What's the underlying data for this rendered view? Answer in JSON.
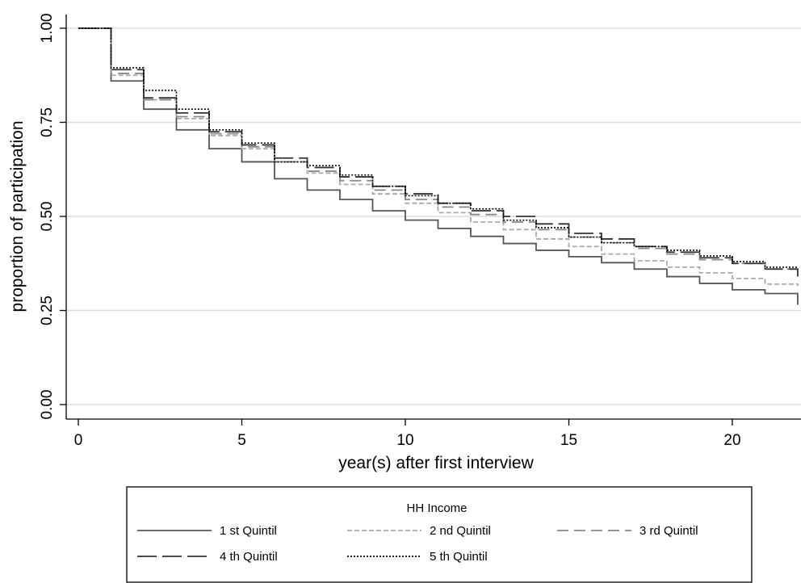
{
  "chart_data": {
    "type": "line",
    "step": true,
    "xlabel": "year(s) after first interview",
    "ylabel": "proportion of participation",
    "xlim": [
      0,
      22
    ],
    "ylim": [
      0,
      1
    ],
    "xticks": [
      "0",
      "5",
      "10",
      "15",
      "20"
    ],
    "yticks": [
      "0.00",
      "0.25",
      "0.50",
      "0.75",
      "1.00"
    ],
    "grid": "horizontal",
    "legend_title": "HH Income",
    "legend_position": "bottom",
    "x": [
      0,
      1,
      2,
      3,
      4,
      5,
      6,
      7,
      8,
      9,
      10,
      11,
      12,
      13,
      14,
      15,
      16,
      17,
      18,
      19,
      20,
      21,
      22
    ],
    "series": [
      {
        "name": "1 st Quintil",
        "color": "#555555",
        "dash": "solid",
        "values": [
          1.0,
          0.86,
          0.785,
          0.73,
          0.68,
          0.645,
          0.6,
          0.57,
          0.545,
          0.515,
          0.49,
          0.468,
          0.447,
          0.428,
          0.41,
          0.393,
          0.377,
          0.36,
          0.34,
          0.322,
          0.305,
          0.295,
          0.265
        ]
      },
      {
        "name": "2 nd Quintil",
        "color": "#aaaaaa",
        "dash": "short",
        "values": [
          1.0,
          0.875,
          0.81,
          0.76,
          0.715,
          0.68,
          0.645,
          0.615,
          0.585,
          0.56,
          0.535,
          0.51,
          0.485,
          0.465,
          0.44,
          0.42,
          0.4,
          0.382,
          0.365,
          0.35,
          0.335,
          0.32,
          0.315
        ]
      },
      {
        "name": "3 rd Quintil",
        "color": "#888888",
        "dash": "long",
        "values": [
          1.0,
          0.88,
          0.81,
          0.765,
          0.72,
          0.685,
          0.645,
          0.62,
          0.595,
          0.57,
          0.545,
          0.525,
          0.505,
          0.485,
          0.465,
          0.445,
          0.43,
          0.415,
          0.4,
          0.385,
          0.375,
          0.36,
          0.355
        ]
      },
      {
        "name": "4 th Quintil",
        "color": "#333333",
        "dash": "longlong",
        "values": [
          1.0,
          0.89,
          0.815,
          0.775,
          0.725,
          0.69,
          0.655,
          0.63,
          0.605,
          0.58,
          0.56,
          0.535,
          0.515,
          0.5,
          0.48,
          0.455,
          0.44,
          0.42,
          0.405,
          0.39,
          0.375,
          0.36,
          0.34
        ]
      },
      {
        "name": "5 th Quintil",
        "color": "#000000",
        "dash": "dot",
        "values": [
          1.0,
          0.895,
          0.835,
          0.785,
          0.73,
          0.695,
          0.645,
          0.635,
          0.61,
          0.58,
          0.555,
          0.535,
          0.52,
          0.49,
          0.47,
          0.445,
          0.43,
          0.42,
          0.41,
          0.395,
          0.38,
          0.365,
          0.365
        ]
      }
    ]
  }
}
